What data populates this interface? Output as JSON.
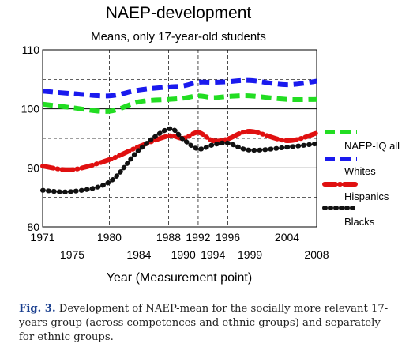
{
  "caption": {
    "label": "Fig. 3.",
    "text": "Development of NAEP-mean for the socially more relevant 17-years group (across competences and ethnic groups) and separately for ethnic groups."
  },
  "chart_data": {
    "type": "line",
    "title": "NAEP-development",
    "subtitle": "Means, only 17-year-old students",
    "xlabel": "Year (Measurement point)",
    "ylabel": "",
    "ylim": [
      80,
      110
    ],
    "yticks": [
      80,
      90,
      100,
      110
    ],
    "x_categories_upper": [
      "1971",
      "1980",
      "1988",
      "1992",
      "1996",
      "2004"
    ],
    "x_categories_lower": [
      "1975",
      "1984",
      "1990",
      "1994",
      "1999",
      "2008"
    ],
    "x_points": [
      1971,
      1975,
      1980,
      1984,
      1988,
      1990,
      1992,
      1994,
      1996,
      1999,
      2004,
      2008
    ],
    "grid": true,
    "legend_position": "right",
    "series": [
      {
        "name": "NAEP-IQ all",
        "color": "#22dd22",
        "dash": "dash",
        "values": [
          100.8,
          100.2,
          99.6,
          101.2,
          101.6,
          101.8,
          102.2,
          101.9,
          102.1,
          102.2,
          101.6,
          101.6
        ]
      },
      {
        "name": "Whites",
        "color": "#1a1aee",
        "dash": "dash",
        "values": [
          103.0,
          102.6,
          102.2,
          103.2,
          103.7,
          103.9,
          104.5,
          104.5,
          104.6,
          104.8,
          104.1,
          104.7
        ]
      },
      {
        "name": "Hispanics",
        "color": "#e01010",
        "dash": "dashdot",
        "values": [
          90.3,
          89.7,
          91.4,
          93.6,
          95.4,
          95.0,
          96.0,
          94.6,
          94.9,
          96.2,
          94.6,
          95.9
        ]
      },
      {
        "name": "Blacks",
        "color": "#111111",
        "dash": "dot",
        "values": [
          86.2,
          86.0,
          87.6,
          93.0,
          96.6,
          94.8,
          93.2,
          93.9,
          94.2,
          93.0,
          93.5,
          94.1
        ]
      }
    ]
  }
}
